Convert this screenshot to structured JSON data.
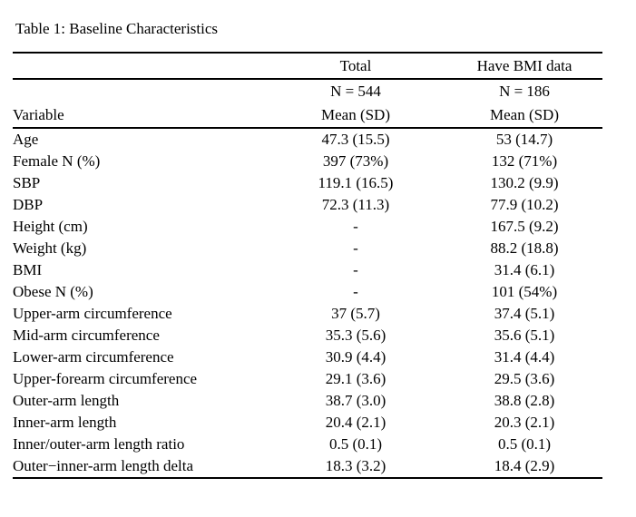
{
  "title": "Table 1: Baseline Characteristics",
  "table": {
    "header": {
      "group_total": "Total",
      "group_bmi": "Have BMI data",
      "n_total": "N = 544",
      "n_bmi": "N = 186",
      "variable_label": "Variable",
      "mean_sd_total": "Mean (SD)",
      "mean_sd_bmi": "Mean (SD)"
    },
    "rows": [
      {
        "label": "Age",
        "total": "47.3 (15.5)",
        "bmi": "53 (14.7)"
      },
      {
        "label": "Female N (%)",
        "total": "397 (73%)",
        "bmi": "132 (71%)"
      },
      {
        "label": "SBP",
        "total": "119.1 (16.5)",
        "bmi": "130.2 (9.9)"
      },
      {
        "label": "DBP",
        "total": "72.3 (11.3)",
        "bmi": "77.9 (10.2)"
      },
      {
        "label": "Height (cm)",
        "total": "-",
        "bmi": "167.5 (9.2)"
      },
      {
        "label": "Weight (kg)",
        "total": "-",
        "bmi": "88.2 (18.8)"
      },
      {
        "label": "BMI",
        "total": "-",
        "bmi": "31.4 (6.1)"
      },
      {
        "label": "Obese N (%)",
        "total": "-",
        "bmi": "101 (54%)"
      },
      {
        "label": "Upper-arm circumference",
        "total": "37 (5.7)",
        "bmi": "37.4 (5.1)"
      },
      {
        "label": "Mid-arm circumference",
        "total": "35.3 (5.6)",
        "bmi": "35.6 (5.1)"
      },
      {
        "label": "Lower-arm circumference",
        "total": "30.9 (4.4)",
        "bmi": "31.4 (4.4)"
      },
      {
        "label": "Upper-forearm circumference",
        "total": "29.1 (3.6)",
        "bmi": "29.5 (3.6)"
      },
      {
        "label": "Outer-arm length",
        "total": "38.7 (3.0)",
        "bmi": "38.8 (2.8)"
      },
      {
        "label": "Inner-arm length",
        "total": "20.4 (2.1)",
        "bmi": "20.3 (2.1)"
      },
      {
        "label": "Inner/outer-arm length ratio",
        "total": "0.5 (0.1)",
        "bmi": "0.5 (0.1)"
      },
      {
        "label": "Outer−inner-arm length delta",
        "total": "18.3 (3.2)",
        "bmi": "18.4 (2.9)"
      }
    ]
  },
  "colors": {
    "text": "#000000",
    "background": "#ffffff",
    "rule": "#000000"
  }
}
